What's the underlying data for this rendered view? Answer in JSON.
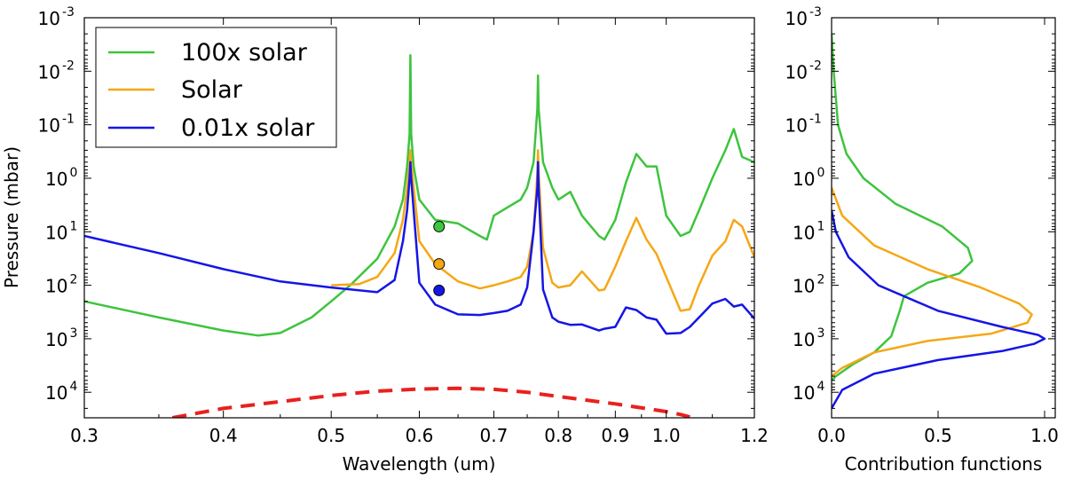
{
  "chart_data": [
    {
      "type": "line",
      "xscale": "log",
      "yscale": "log",
      "yinverted": true,
      "xlabel": "Wavelength  (um)",
      "ylabel": "Pressure  (mbar)",
      "xlim": [
        0.3,
        1.2
      ],
      "ylim": [
        0.001,
        30000
      ],
      "xticks": [
        0.3,
        0.4,
        0.5,
        0.6,
        0.7,
        0.8,
        0.9,
        1.0,
        1.2
      ],
      "xtick_labels": [
        "0.3",
        "0.4",
        "0.5",
        "0.6",
        "0.7",
        "0.8",
        "0.9",
        "1.0",
        "1.2"
      ],
      "yticks": [
        {
          "base": "10",
          "exp": "-3",
          "value": 0.001
        },
        {
          "base": "10",
          "exp": "-2",
          "value": 0.01
        },
        {
          "base": "10",
          "exp": "-1",
          "value": 0.1
        },
        {
          "base": "10",
          "exp": "0",
          "value": 1
        },
        {
          "base": "10",
          "exp": "1",
          "value": 10
        },
        {
          "base": "10",
          "exp": "2",
          "value": 100
        },
        {
          "base": "10",
          "exp": "3",
          "value": 1000
        },
        {
          "base": "10",
          "exp": "4",
          "value": 10000
        }
      ],
      "legend_position": "top-left",
      "series": [
        {
          "name": "100x solar",
          "color": "#3ec43e",
          "points": [
            [
              0.3,
              200
            ],
            [
              0.35,
              400
            ],
            [
              0.4,
              700
            ],
            [
              0.43,
              870
            ],
            [
              0.45,
              780
            ],
            [
              0.48,
              400
            ],
            [
              0.5,
              200
            ],
            [
              0.52,
              100
            ],
            [
              0.55,
              32
            ],
            [
              0.57,
              8
            ],
            [
              0.58,
              2.5
            ],
            [
              0.585,
              0.6
            ],
            [
              0.588,
              0.15
            ],
            [
              0.589,
              0.005
            ],
            [
              0.59,
              0.15
            ],
            [
              0.593,
              0.6
            ],
            [
              0.6,
              2.5
            ],
            [
              0.62,
              6
            ],
            [
              0.65,
              7
            ],
            [
              0.68,
              12
            ],
            [
              0.69,
              14
            ],
            [
              0.7,
              5
            ],
            [
              0.72,
              3.5
            ],
            [
              0.74,
              2.5
            ],
            [
              0.75,
              1.5
            ],
            [
              0.76,
              0.5
            ],
            [
              0.766,
              0.05
            ],
            [
              0.767,
              0.012
            ],
            [
              0.768,
              0.05
            ],
            [
              0.775,
              0.5
            ],
            [
              0.79,
              1.5
            ],
            [
              0.8,
              2.5
            ],
            [
              0.82,
              1.8
            ],
            [
              0.84,
              5
            ],
            [
              0.87,
              12
            ],
            [
              0.88,
              14
            ],
            [
              0.9,
              6
            ],
            [
              0.92,
              1.2
            ],
            [
              0.94,
              0.35
            ],
            [
              0.96,
              0.6
            ],
            [
              0.98,
              0.6
            ],
            [
              1.0,
              5
            ],
            [
              1.03,
              12
            ],
            [
              1.05,
              10
            ],
            [
              1.07,
              4
            ],
            [
              1.1,
              1.0
            ],
            [
              1.13,
              0.3
            ],
            [
              1.15,
              0.12
            ],
            [
              1.17,
              0.4
            ],
            [
              1.2,
              0.5
            ]
          ]
        },
        {
          "name": "Solar",
          "color": "#f5a716",
          "points": [
            [
              0.5,
              100
            ],
            [
              0.53,
              95
            ],
            [
              0.55,
              70
            ],
            [
              0.57,
              25
            ],
            [
              0.58,
              6
            ],
            [
              0.585,
              1.5
            ],
            [
              0.588,
              0.5
            ],
            [
              0.589,
              0.3
            ],
            [
              0.59,
              0.5
            ],
            [
              0.593,
              1.5
            ],
            [
              0.6,
              15
            ],
            [
              0.62,
              40
            ],
            [
              0.65,
              85
            ],
            [
              0.68,
              115
            ],
            [
              0.7,
              100
            ],
            [
              0.72,
              85
            ],
            [
              0.74,
              70
            ],
            [
              0.75,
              45
            ],
            [
              0.76,
              10
            ],
            [
              0.766,
              0.8
            ],
            [
              0.767,
              0.3
            ],
            [
              0.768,
              0.8
            ],
            [
              0.775,
              20
            ],
            [
              0.79,
              90
            ],
            [
              0.8,
              110
            ],
            [
              0.82,
              100
            ],
            [
              0.84,
              55
            ],
            [
              0.87,
              125
            ],
            [
              0.88,
              120
            ],
            [
              0.9,
              45
            ],
            [
              0.92,
              15
            ],
            [
              0.94,
              5.5
            ],
            [
              0.96,
              14
            ],
            [
              0.98,
              26
            ],
            [
              1.0,
              70
            ],
            [
              1.03,
              300
            ],
            [
              1.05,
              280
            ],
            [
              1.07,
              100
            ],
            [
              1.1,
              28
            ],
            [
              1.13,
              15
            ],
            [
              1.15,
              6
            ],
            [
              1.17,
              8
            ],
            [
              1.2,
              30
            ]
          ]
        },
        {
          "name": "0.01x solar",
          "color": "#1515e6",
          "points": [
            [
              0.3,
              12
            ],
            [
              0.35,
              25
            ],
            [
              0.4,
              50
            ],
            [
              0.45,
              85
            ],
            [
              0.5,
              110
            ],
            [
              0.55,
              135
            ],
            [
              0.57,
              80
            ],
            [
              0.58,
              15
            ],
            [
              0.585,
              4
            ],
            [
              0.588,
              1
            ],
            [
              0.589,
              0.5
            ],
            [
              0.59,
              1
            ],
            [
              0.593,
              4
            ],
            [
              0.6,
              90
            ],
            [
              0.62,
              230
            ],
            [
              0.65,
              350
            ],
            [
              0.68,
              360
            ],
            [
              0.7,
              330
            ],
            [
              0.72,
              300
            ],
            [
              0.74,
              230
            ],
            [
              0.75,
              110
            ],
            [
              0.76,
              10
            ],
            [
              0.766,
              1.5
            ],
            [
              0.767,
              0.5
            ],
            [
              0.768,
              1.5
            ],
            [
              0.775,
              120
            ],
            [
              0.79,
              400
            ],
            [
              0.8,
              480
            ],
            [
              0.82,
              550
            ],
            [
              0.84,
              540
            ],
            [
              0.87,
              700
            ],
            [
              0.88,
              650
            ],
            [
              0.9,
              600
            ],
            [
              0.92,
              260
            ],
            [
              0.94,
              290
            ],
            [
              0.96,
              400
            ],
            [
              0.98,
              440
            ],
            [
              1.0,
              800
            ],
            [
              1.03,
              780
            ],
            [
              1.05,
              600
            ],
            [
              1.07,
              400
            ],
            [
              1.1,
              220
            ],
            [
              1.13,
              180
            ],
            [
              1.15,
              250
            ],
            [
              1.17,
              230
            ],
            [
              1.2,
              420
            ]
          ]
        },
        {
          "name": "",
          "color": "#e8211d",
          "dashed": true,
          "points": [
            [
              0.36,
              30000
            ],
            [
              0.4,
              20000
            ],
            [
              0.45,
              15000
            ],
            [
              0.5,
              11500
            ],
            [
              0.55,
              9500
            ],
            [
              0.6,
              8700
            ],
            [
              0.65,
              8400
            ],
            [
              0.7,
              8800
            ],
            [
              0.75,
              10000
            ],
            [
              0.8,
              12000
            ],
            [
              0.9,
              16500
            ],
            [
              1.0,
              23000
            ],
            [
              1.03,
              26000
            ],
            [
              1.05,
              29000
            ]
          ]
        }
      ],
      "markers": [
        {
          "wavelength": 0.625,
          "pressure": 8,
          "color": "#3ec43e"
        },
        {
          "wavelength": 0.625,
          "pressure": 40,
          "color": "#f5a716"
        },
        {
          "wavelength": 0.625,
          "pressure": 125,
          "color": "#1515e6"
        }
      ]
    },
    {
      "type": "line",
      "yscale": "log",
      "yinverted": true,
      "xlabel": "Contribution functions",
      "ylabel": "",
      "xlim": [
        0.0,
        1.05
      ],
      "ylim": [
        0.001,
        30000
      ],
      "xticks": [
        0.0,
        0.5,
        1.0
      ],
      "xtick_labels": [
        "0.0",
        "0.5",
        "1.0"
      ],
      "yticks": [
        {
          "base": "10",
          "exp": "-3",
          "value": 0.001
        },
        {
          "base": "10",
          "exp": "-2",
          "value": 0.01
        },
        {
          "base": "10",
          "exp": "-1",
          "value": 0.1
        },
        {
          "base": "10",
          "exp": "0",
          "value": 1
        },
        {
          "base": "10",
          "exp": "1",
          "value": 10
        },
        {
          "base": "10",
          "exp": "2",
          "value": 100
        },
        {
          "base": "10",
          "exp": "3",
          "value": 1000
        },
        {
          "base": "10",
          "exp": "4",
          "value": 10000
        }
      ],
      "series": [
        {
          "name": "100x solar",
          "color": "#3ec43e",
          "points": [
            [
              0.0,
              0.002
            ],
            [
              0.01,
              0.01
            ],
            [
              0.03,
              0.1
            ],
            [
              0.07,
              0.35
            ],
            [
              0.15,
              1.0
            ],
            [
              0.3,
              3
            ],
            [
              0.52,
              8
            ],
            [
              0.64,
              20
            ],
            [
              0.66,
              35
            ],
            [
              0.6,
              60
            ],
            [
              0.45,
              90
            ],
            [
              0.34,
              160
            ],
            [
              0.32,
              300
            ],
            [
              0.28,
              900
            ],
            [
              0.2,
              1800
            ],
            [
              0.1,
              3000
            ],
            [
              0.02,
              5000
            ],
            [
              0.0,
              6000
            ]
          ]
        },
        {
          "name": "Solar",
          "color": "#f5a716",
          "points": [
            [
              0.0,
              1.5
            ],
            [
              0.05,
              5
            ],
            [
              0.2,
              18
            ],
            [
              0.45,
              50
            ],
            [
              0.7,
              110
            ],
            [
              0.88,
              220
            ],
            [
              0.94,
              350
            ],
            [
              0.92,
              500
            ],
            [
              0.75,
              800
            ],
            [
              0.45,
              1100
            ],
            [
              0.2,
              1800
            ],
            [
              0.05,
              3500
            ],
            [
              0.0,
              5000
            ]
          ]
        },
        {
          "name": "0.01x solar",
          "color": "#1515e6",
          "points": [
            [
              0.0,
              4
            ],
            [
              0.02,
              10
            ],
            [
              0.08,
              30
            ],
            [
              0.22,
              100
            ],
            [
              0.5,
              300
            ],
            [
              0.8,
              600
            ],
            [
              0.97,
              850
            ],
            [
              1.0,
              1000
            ],
            [
              0.95,
              1250
            ],
            [
              0.8,
              1700
            ],
            [
              0.5,
              2500
            ],
            [
              0.2,
              4500
            ],
            [
              0.05,
              9000
            ],
            [
              0.0,
              20000
            ]
          ]
        }
      ]
    }
  ]
}
